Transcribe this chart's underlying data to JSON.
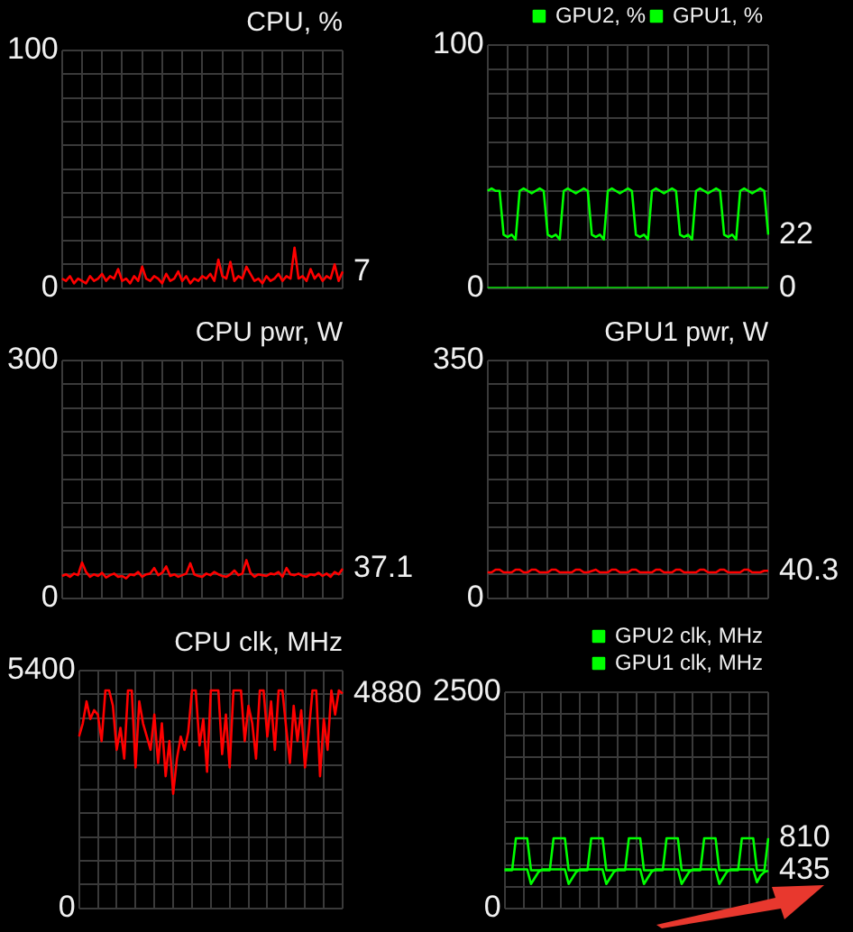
{
  "chart_data": [
    {
      "type": "line",
      "title": "CPU, %",
      "categories": [
        null,
        null,
        null,
        null,
        null,
        null,
        null,
        null,
        null,
        null,
        null,
        null,
        null,
        null,
        null,
        null,
        null,
        null,
        null,
        null,
        null,
        null,
        null,
        null,
        null,
        null,
        null,
        null,
        null,
        null,
        null,
        null,
        null,
        null,
        null,
        null,
        null,
        null,
        null,
        null,
        null,
        null,
        null,
        null,
        null,
        null,
        null,
        null,
        null,
        null,
        null,
        null,
        null,
        null,
        null,
        null,
        null,
        null,
        null,
        null,
        null,
        null,
        null,
        null,
        null,
        null,
        null,
        null,
        null,
        null,
        null
      ],
      "ylim": [
        0,
        100
      ],
      "yticks": [
        0,
        {
          "value": 10,
          "label": null
        },
        {
          "value": 20,
          "label": null
        },
        {
          "value": 30,
          "label": null
        },
        {
          "value": 40,
          "label": null
        },
        {
          "value": 50,
          "label": null
        },
        {
          "value": 60,
          "label": null
        },
        {
          "value": 70,
          "label": null
        },
        {
          "value": 80,
          "label": null
        },
        {
          "value": 90,
          "label": null
        },
        100
      ],
      "tick_labels": "y",
      "grid": true,
      "marker": "none",
      "series": [
        {
          "color": "#ff0000",
          "values": [
            4,
            3,
            5,
            2,
            4,
            3,
            2,
            5,
            3,
            4,
            6,
            3,
            5,
            4,
            8,
            3,
            4,
            2,
            5,
            3,
            9,
            4,
            3,
            5,
            4,
            2,
            6,
            3,
            4,
            7,
            3,
            5,
            2,
            4,
            3,
            5,
            4,
            6,
            3,
            12,
            5,
            4,
            11,
            3,
            5,
            4,
            9,
            6,
            3,
            4,
            2,
            5,
            3,
            4,
            6,
            3,
            5,
            4,
            17,
            4,
            5,
            3,
            8,
            4,
            6,
            3,
            5,
            4,
            10,
            3,
            7
          ],
          "value_labels": [
            null,
            null,
            null,
            null,
            null,
            null,
            null,
            null,
            null,
            null,
            null,
            null,
            null,
            null,
            null,
            null,
            null,
            null,
            null,
            null,
            null,
            null,
            null,
            null,
            null,
            null,
            null,
            null,
            null,
            null,
            null,
            null,
            null,
            null,
            null,
            null,
            null,
            null,
            null,
            null,
            null,
            null,
            null,
            null,
            null,
            null,
            null,
            null,
            null,
            null,
            null,
            null,
            null,
            null,
            null,
            null,
            null,
            null,
            null,
            null,
            null,
            null,
            null,
            null,
            null,
            null,
            null,
            null,
            null,
            null,
            "7"
          ]
        }
      ]
    },
    {
      "type": "line",
      "categories": [
        null,
        null,
        null,
        null,
        null,
        null,
        null,
        null,
        null,
        null,
        null,
        null,
        null,
        null,
        null,
        null,
        null,
        null,
        null,
        null,
        null,
        null,
        null,
        null,
        null,
        null,
        null,
        null,
        null,
        null,
        null,
        null,
        null,
        null,
        null,
        null,
        null,
        null,
        null,
        null,
        null,
        null,
        null,
        null,
        null,
        null,
        null,
        null,
        null,
        null,
        null,
        null,
        null,
        null,
        null,
        null,
        null,
        null,
        null,
        null,
        null,
        null,
        null,
        null,
        null,
        null,
        null,
        null,
        null,
        null,
        null
      ],
      "ylim": [
        0,
        100
      ],
      "yticks": [
        0,
        {
          "value": 10,
          "label": null
        },
        {
          "value": 20,
          "label": null
        },
        {
          "value": 30,
          "label": null
        },
        {
          "value": 40,
          "label": null
        },
        {
          "value": 50,
          "label": null
        },
        {
          "value": 60,
          "label": null
        },
        {
          "value": 70,
          "label": null
        },
        {
          "value": 80,
          "label": null
        },
        {
          "value": 90,
          "label": null
        },
        100
      ],
      "tick_labels": "y",
      "grid": true,
      "marker": "none",
      "legend": "top right",
      "series": [
        {
          "name": "GPU2, %",
          "color": "#00ff00",
          "values": [
            0,
            0,
            0,
            0,
            0,
            0,
            0,
            0,
            0,
            0,
            0,
            0,
            0,
            0,
            0,
            0,
            0,
            0,
            0,
            0,
            0,
            0,
            0,
            0,
            0,
            0,
            0,
            0,
            0,
            0,
            0,
            0,
            0,
            0,
            0,
            0,
            0,
            0,
            0,
            0,
            0,
            0,
            0,
            0,
            0,
            0,
            0,
            0,
            0,
            0,
            0,
            0,
            0,
            0,
            0,
            0,
            0,
            0,
            0,
            0,
            0,
            0,
            0,
            0,
            0,
            0,
            0,
            0,
            0,
            0,
            0
          ],
          "value_labels": [
            null,
            null,
            null,
            null,
            null,
            null,
            null,
            null,
            null,
            null,
            null,
            null,
            null,
            null,
            null,
            null,
            null,
            null,
            null,
            null,
            null,
            null,
            null,
            null,
            null,
            null,
            null,
            null,
            null,
            null,
            null,
            null,
            null,
            null,
            null,
            null,
            null,
            null,
            null,
            null,
            null,
            null,
            null,
            null,
            null,
            null,
            null,
            null,
            null,
            null,
            null,
            null,
            null,
            null,
            null,
            null,
            null,
            null,
            null,
            null,
            null,
            null,
            null,
            null,
            null,
            null,
            null,
            null,
            null,
            null,
            "0"
          ]
        },
        {
          "name": "GPU1, %",
          "color": "#00ff00",
          "values": [
            40,
            41,
            40,
            40,
            22,
            21,
            22,
            20,
            40,
            41,
            40,
            39,
            40,
            41,
            40,
            22,
            21,
            22,
            20,
            40,
            41,
            40,
            39,
            40,
            41,
            40,
            22,
            21,
            22,
            20,
            40,
            41,
            40,
            39,
            40,
            41,
            40,
            22,
            21,
            22,
            20,
            40,
            41,
            40,
            39,
            40,
            41,
            40,
            22,
            21,
            22,
            20,
            40,
            41,
            40,
            39,
            40,
            41,
            40,
            22,
            21,
            22,
            20,
            40,
            41,
            40,
            39,
            40,
            41,
            40,
            22
          ],
          "value_labels": [
            null,
            null,
            null,
            null,
            null,
            null,
            null,
            null,
            null,
            null,
            null,
            null,
            null,
            null,
            null,
            null,
            null,
            null,
            null,
            null,
            null,
            null,
            null,
            null,
            null,
            null,
            null,
            null,
            null,
            null,
            null,
            null,
            null,
            null,
            null,
            null,
            null,
            null,
            null,
            null,
            null,
            null,
            null,
            null,
            null,
            null,
            null,
            null,
            null,
            null,
            null,
            null,
            null,
            null,
            null,
            null,
            null,
            null,
            null,
            null,
            null,
            null,
            null,
            null,
            null,
            null,
            null,
            null,
            null,
            null,
            "22"
          ]
        }
      ]
    },
    {
      "type": "line",
      "title": "CPU pwr, W",
      "categories": [
        null,
        null,
        null,
        null,
        null,
        null,
        null,
        null,
        null,
        null,
        null,
        null,
        null,
        null,
        null,
        null,
        null,
        null,
        null,
        null,
        null,
        null,
        null,
        null,
        null,
        null,
        null,
        null,
        null,
        null,
        null,
        null,
        null,
        null,
        null,
        null,
        null,
        null,
        null,
        null,
        null,
        null,
        null,
        null,
        null,
        null,
        null,
        null,
        null,
        null,
        null,
        null,
        null,
        null,
        null,
        null,
        null,
        null,
        null,
        null,
        null,
        null,
        null,
        null,
        null,
        null,
        null,
        null,
        null,
        null,
        null
      ],
      "ylim": [
        0,
        300
      ],
      "yticks": [
        0,
        {
          "value": 30,
          "label": null
        },
        {
          "value": 60,
          "label": null
        },
        {
          "value": 90,
          "label": null
        },
        {
          "value": 120,
          "label": null
        },
        {
          "value": 150,
          "label": null
        },
        {
          "value": 180,
          "label": null
        },
        {
          "value": 210,
          "label": null
        },
        {
          "value": 240,
          "label": null
        },
        {
          "value": 270,
          "label": null
        },
        300
      ],
      "tick_labels": "y",
      "grid": true,
      "marker": "none",
      "series": [
        {
          "color": "#ff0000",
          "values": [
            28,
            30,
            27,
            31,
            29,
            45,
            33,
            27,
            30,
            28,
            32,
            26,
            29,
            31,
            27,
            28,
            25,
            30,
            29,
            33,
            27,
            30,
            31,
            38,
            29,
            32,
            40,
            28,
            30,
            27,
            29,
            31,
            44,
            30,
            28,
            27,
            31,
            29,
            33,
            30,
            28,
            27,
            30,
            35,
            29,
            31,
            48,
            32,
            27,
            30,
            29,
            28,
            31,
            30,
            33,
            27,
            38,
            30,
            29,
            31,
            28,
            27,
            30,
            29,
            32,
            28,
            31,
            27,
            33,
            30,
            37.1
          ],
          "value_labels": [
            null,
            null,
            null,
            null,
            null,
            null,
            null,
            null,
            null,
            null,
            null,
            null,
            null,
            null,
            null,
            null,
            null,
            null,
            null,
            null,
            null,
            null,
            null,
            null,
            null,
            null,
            null,
            null,
            null,
            null,
            null,
            null,
            null,
            null,
            null,
            null,
            null,
            null,
            null,
            null,
            null,
            null,
            null,
            null,
            null,
            null,
            null,
            null,
            null,
            null,
            null,
            null,
            null,
            null,
            null,
            null,
            null,
            null,
            null,
            null,
            null,
            null,
            null,
            null,
            null,
            null,
            null,
            null,
            null,
            null,
            "37.1"
          ]
        }
      ]
    },
    {
      "type": "line",
      "title": "GPU1 pwr, W",
      "categories": [
        null,
        null,
        null,
        null,
        null,
        null,
        null,
        null,
        null,
        null,
        null,
        null,
        null,
        null,
        null,
        null,
        null,
        null,
        null,
        null,
        null,
        null,
        null,
        null,
        null,
        null,
        null,
        null,
        null,
        null,
        null,
        null,
        null,
        null,
        null,
        null,
        null,
        null,
        null,
        null,
        null,
        null,
        null,
        null,
        null,
        null,
        null,
        null,
        null,
        null,
        null,
        null,
        null,
        null,
        null,
        null,
        null,
        null,
        null,
        null,
        null,
        null,
        null,
        null,
        null,
        null,
        null,
        null,
        null,
        null,
        null
      ],
      "ylim": [
        0,
        350
      ],
      "yticks": [
        0,
        {
          "value": 35,
          "label": null
        },
        {
          "value": 70,
          "label": null
        },
        {
          "value": 105,
          "label": null
        },
        {
          "value": 140,
          "label": null
        },
        {
          "value": 175,
          "label": null
        },
        {
          "value": 210,
          "label": null
        },
        {
          "value": 245,
          "label": null
        },
        {
          "value": 280,
          "label": null
        },
        {
          "value": 315,
          "label": null
        },
        350
      ],
      "tick_labels": "y",
      "grid": true,
      "marker": "none",
      "series": [
        {
          "color": "#ff0000",
          "values": [
            38,
            38,
            42,
            42,
            38,
            38,
            38,
            42,
            42,
            38,
            38,
            42,
            42,
            38,
            38,
            38,
            42,
            42,
            38,
            38,
            38,
            38,
            42,
            42,
            38,
            38,
            40,
            42,
            38,
            38,
            38,
            42,
            42,
            38,
            38,
            38,
            42,
            42,
            38,
            38,
            38,
            38,
            42,
            42,
            38,
            38,
            38,
            42,
            42,
            38,
            38,
            38,
            38,
            42,
            42,
            38,
            38,
            38,
            42,
            42,
            38,
            38,
            38,
            38,
            42,
            42,
            38,
            38,
            38,
            40.3,
            40.3
          ],
          "value_labels": [
            null,
            null,
            null,
            null,
            null,
            null,
            null,
            null,
            null,
            null,
            null,
            null,
            null,
            null,
            null,
            null,
            null,
            null,
            null,
            null,
            null,
            null,
            null,
            null,
            null,
            null,
            null,
            null,
            null,
            null,
            null,
            null,
            null,
            null,
            null,
            null,
            null,
            null,
            null,
            null,
            null,
            null,
            null,
            null,
            null,
            null,
            null,
            null,
            null,
            null,
            null,
            null,
            null,
            null,
            null,
            null,
            null,
            null,
            null,
            null,
            null,
            null,
            null,
            null,
            null,
            null,
            null,
            null,
            null,
            null,
            "40.3"
          ]
        }
      ]
    },
    {
      "type": "line",
      "title": "CPU clk, MHz",
      "categories": [
        null,
        null,
        null,
        null,
        null,
        null,
        null,
        null,
        null,
        null,
        null,
        null,
        null,
        null,
        null,
        null,
        null,
        null,
        null,
        null,
        null,
        null,
        null,
        null,
        null,
        null,
        null,
        null,
        null,
        null,
        null,
        null,
        null,
        null,
        null,
        null,
        null,
        null,
        null,
        null,
        null,
        null,
        null,
        null,
        null,
        null,
        null,
        null,
        null,
        null,
        null,
        null,
        null,
        null,
        null,
        null,
        null,
        null,
        null,
        null,
        null,
        null,
        null,
        null,
        null,
        null,
        null,
        null,
        null,
        null,
        null
      ],
      "ylim": [
        0,
        5400
      ],
      "yticks": [
        0,
        {
          "value": 540,
          "label": null
        },
        {
          "value": 1080,
          "label": null
        },
        {
          "value": 1620,
          "label": null
        },
        {
          "value": 2160,
          "label": null
        },
        {
          "value": 2700,
          "label": null
        },
        {
          "value": 3240,
          "label": null
        },
        {
          "value": 3780,
          "label": null
        },
        {
          "value": 4320,
          "label": null
        },
        {
          "value": 4860,
          "label": null
        },
        5400
      ],
      "tick_labels": "y",
      "grid": true,
      "marker": "none",
      "series": [
        {
          "color": "#ff0000",
          "values": [
            3900,
            4200,
            4700,
            4300,
            4500,
            4400,
            3800,
            4950,
            4950,
            4600,
            3600,
            4100,
            3400,
            4950,
            4950,
            3200,
            4700,
            4200,
            3900,
            3600,
            4400,
            3300,
            4200,
            3000,
            3800,
            2600,
            3400,
            3900,
            3600,
            4000,
            4950,
            4950,
            3700,
            4300,
            3100,
            4950,
            4950,
            4950,
            3500,
            4400,
            3200,
            4950,
            4950,
            4950,
            3800,
            4600,
            4200,
            3400,
            4950,
            4950,
            3900,
            4700,
            3600,
            4950,
            4950,
            4100,
            3300,
            4600,
            3800,
            4500,
            3200,
            4000,
            4950,
            4950,
            3000,
            4300,
            3600,
            4950,
            4400,
            4950,
            4880
          ],
          "value_labels": [
            null,
            null,
            null,
            null,
            null,
            null,
            null,
            null,
            null,
            null,
            null,
            null,
            null,
            null,
            null,
            null,
            null,
            null,
            null,
            null,
            null,
            null,
            null,
            null,
            null,
            null,
            null,
            null,
            null,
            null,
            null,
            null,
            null,
            null,
            null,
            null,
            null,
            null,
            null,
            null,
            null,
            null,
            null,
            null,
            null,
            null,
            null,
            null,
            null,
            null,
            null,
            null,
            null,
            null,
            null,
            null,
            null,
            null,
            null,
            null,
            null,
            null,
            null,
            null,
            null,
            null,
            null,
            null,
            null,
            null,
            "4880"
          ]
        }
      ]
    },
    {
      "type": "line",
      "categories": [
        null,
        null,
        null,
        null,
        null,
        null,
        null,
        null,
        null,
        null,
        null,
        null,
        null,
        null,
        null,
        null,
        null,
        null,
        null,
        null,
        null,
        null,
        null,
        null,
        null,
        null,
        null,
        null,
        null,
        null,
        null,
        null,
        null,
        null,
        null,
        null,
        null,
        null,
        null,
        null,
        null,
        null,
        null,
        null,
        null,
        null,
        null,
        null,
        null,
        null,
        null,
        null,
        null,
        null,
        null,
        null,
        null,
        null,
        null,
        null,
        null,
        null,
        null,
        null,
        null,
        null,
        null,
        null,
        null,
        null,
        null
      ],
      "ylim": [
        0,
        2500
      ],
      "yticks": [
        0,
        {
          "value": 250,
          "label": null
        },
        {
          "value": 500,
          "label": null
        },
        {
          "value": 750,
          "label": null
        },
        {
          "value": 1000,
          "label": null
        },
        {
          "value": 1250,
          "label": null
        },
        {
          "value": 1500,
          "label": null
        },
        {
          "value": 1750,
          "label": null
        },
        {
          "value": 2000,
          "label": null
        },
        {
          "value": 2250,
          "label": null
        },
        2500
      ],
      "tick_labels": "y",
      "grid": true,
      "marker": "none",
      "legend": "top right",
      "series": [
        {
          "name": "GPU2 clk, MHz",
          "color": "#00ff00",
          "values": [
            440,
            440,
            440,
            810,
            810,
            810,
            810,
            440,
            440,
            440,
            440,
            440,
            440,
            810,
            810,
            810,
            810,
            440,
            440,
            440,
            440,
            440,
            440,
            810,
            810,
            810,
            810,
            440,
            440,
            440,
            440,
            440,
            440,
            810,
            810,
            810,
            810,
            440,
            440,
            440,
            440,
            440,
            440,
            810,
            810,
            810,
            810,
            440,
            440,
            440,
            440,
            440,
            440,
            810,
            810,
            810,
            810,
            440,
            440,
            440,
            440,
            440,
            440,
            810,
            810,
            810,
            810,
            440,
            440,
            440,
            810
          ],
          "value_labels": [
            null,
            null,
            null,
            null,
            null,
            null,
            null,
            null,
            null,
            null,
            null,
            null,
            null,
            null,
            null,
            null,
            null,
            null,
            null,
            null,
            null,
            null,
            null,
            null,
            null,
            null,
            null,
            null,
            null,
            null,
            null,
            null,
            null,
            null,
            null,
            null,
            null,
            null,
            null,
            null,
            null,
            null,
            null,
            null,
            null,
            null,
            null,
            null,
            null,
            null,
            null,
            null,
            null,
            null,
            null,
            null,
            null,
            null,
            null,
            null,
            null,
            null,
            null,
            null,
            null,
            null,
            null,
            null,
            null,
            null,
            "810"
          ]
        },
        {
          "name": "GPU1 clk, MHz",
          "color": "#00ff00",
          "values": [
            450,
            450,
            450,
            450,
            450,
            450,
            450,
            280,
            350,
            420,
            450,
            450,
            450,
            450,
            450,
            450,
            450,
            280,
            350,
            420,
            450,
            450,
            450,
            450,
            450,
            450,
            450,
            280,
            350,
            420,
            450,
            450,
            450,
            450,
            450,
            450,
            450,
            280,
            350,
            420,
            450,
            450,
            450,
            450,
            450,
            450,
            450,
            280,
            350,
            420,
            450,
            450,
            450,
            450,
            450,
            450,
            450,
            280,
            350,
            420,
            450,
            450,
            450,
            450,
            450,
            450,
            450,
            300,
            380,
            420,
            435
          ],
          "value_labels": [
            null,
            null,
            null,
            null,
            null,
            null,
            null,
            null,
            null,
            null,
            null,
            null,
            null,
            null,
            null,
            null,
            null,
            null,
            null,
            null,
            null,
            null,
            null,
            null,
            null,
            null,
            null,
            null,
            null,
            null,
            null,
            null,
            null,
            null,
            null,
            null,
            null,
            null,
            null,
            null,
            null,
            null,
            null,
            null,
            null,
            null,
            null,
            null,
            null,
            null,
            null,
            null,
            null,
            null,
            null,
            null,
            null,
            null,
            null,
            null,
            null,
            null,
            null,
            null,
            null,
            null,
            null,
            null,
            null,
            null,
            "435"
          ]
        }
      ]
    }
  ]
}
